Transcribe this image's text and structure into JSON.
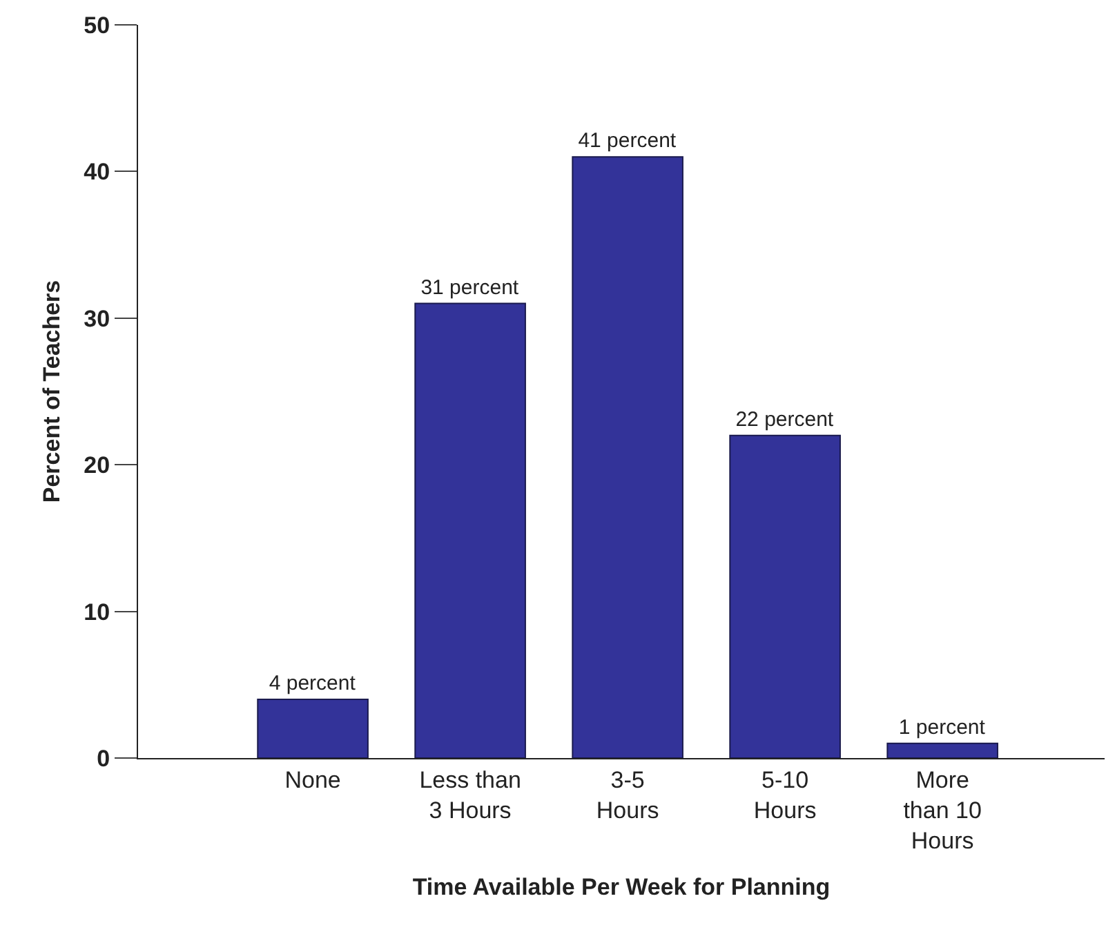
{
  "chart_data": {
    "type": "bar",
    "xlabel": "Time Available Per Week for Planning",
    "ylabel": "Percent of Teachers",
    "categories": [
      "None",
      "Less than\n3 Hours",
      "3-5\nHours",
      "5-10\nHours",
      "More\nthan 10\nHours"
    ],
    "values": [
      4,
      31,
      41,
      22,
      1
    ],
    "value_labels": [
      "4 percent",
      "31 percent",
      "41 percent",
      "22 percent",
      "1 percent"
    ],
    "color": "#333399",
    "ylim": [
      0,
      50
    ],
    "yticks": [
      0,
      10,
      20,
      30,
      40,
      50
    ]
  }
}
